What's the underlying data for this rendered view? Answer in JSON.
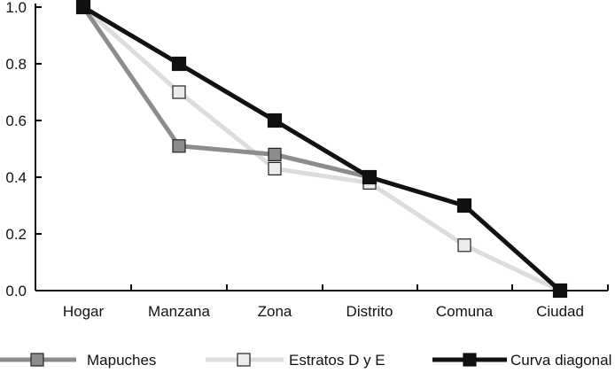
{
  "chart_data": {
    "type": "line",
    "title": "",
    "xlabel": "",
    "ylabel": "",
    "categories": [
      "Hogar",
      "Manzana",
      "Zona",
      "Distrito",
      "Comuna",
      "Ciudad"
    ],
    "ylim": [
      0,
      1
    ],
    "yticks": [
      "0.0",
      "0.2",
      "0.4",
      "0.6",
      "0.8",
      "1.0"
    ],
    "legend_position": "bottom",
    "series": [
      {
        "name": "Mapuches",
        "values": [
          1.0,
          0.51,
          0.48,
          0.4,
          null,
          null
        ],
        "line_color": "#8c8c8c",
        "marker_color": "#8c8c8c",
        "marker_edge": "#222222"
      },
      {
        "name": "Estratos D y E",
        "values": [
          1.0,
          0.7,
          0.43,
          0.38,
          0.16,
          0.0
        ],
        "line_color": "#dcdcdc",
        "marker_color": "#ececec",
        "marker_edge": "#222222"
      },
      {
        "name": "Curva diagonal",
        "values": [
          1.0,
          0.8,
          0.6,
          0.4,
          0.3,
          0.0
        ],
        "line_color": "#111111",
        "marker_color": "#111111",
        "marker_edge": "#111111"
      }
    ]
  }
}
